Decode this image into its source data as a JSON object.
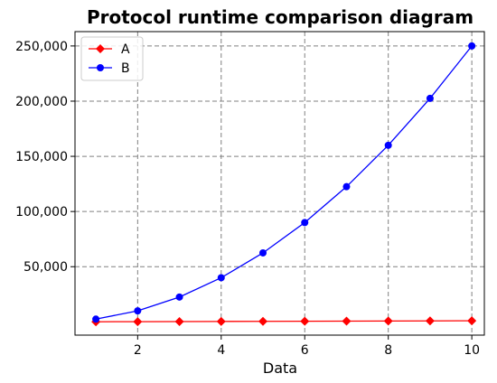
{
  "chart_data": {
    "type": "line",
    "title": "Protocol runtime comparison diagram",
    "xlabel": "Data",
    "ylabel": "",
    "x": [
      1,
      2,
      3,
      4,
      5,
      6,
      7,
      8,
      9,
      10
    ],
    "xlim": [
      0.5,
      10.3
    ],
    "ylim": [
      -12000,
      263000
    ],
    "xticks": [
      2,
      4,
      6,
      8,
      10
    ],
    "xtick_labels": [
      "2",
      "4",
      "6",
      "8",
      "10"
    ],
    "yticks": [
      50000,
      100000,
      150000,
      200000,
      250000
    ],
    "ytick_labels": [
      "50,000",
      "100,000",
      "150,000",
      "200,000",
      "250,000"
    ],
    "grid": true,
    "legend_position": "top-left",
    "series": [
      {
        "name": "A",
        "color": "#ff0000",
        "marker": "diamond",
        "values": [
          100,
          200,
          300,
          400,
          500,
          600,
          700,
          800,
          900,
          1000
        ]
      },
      {
        "name": "B",
        "color": "#0000ff",
        "marker": "circle",
        "values": [
          2500,
          10000,
          22500,
          40000,
          62500,
          90000,
          122500,
          160000,
          202500,
          250000
        ]
      }
    ]
  }
}
